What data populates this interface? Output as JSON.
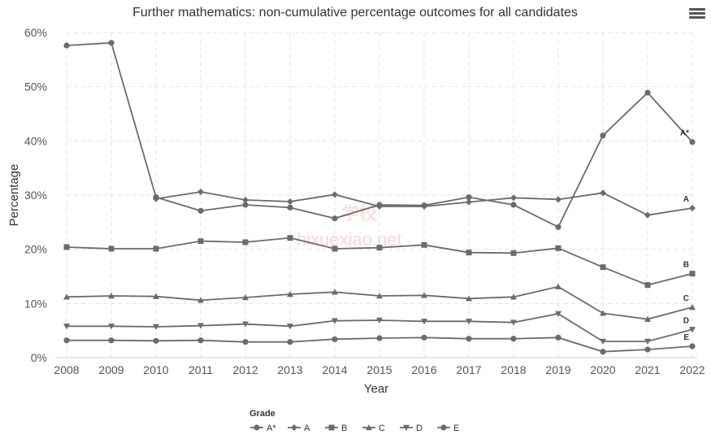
{
  "chart_data": {
    "type": "line",
    "title": "Further mathematics: non-cumulative percentage outcomes for all candidates",
    "xlabel": "Year",
    "ylabel": "Percentage",
    "x": [
      2008,
      2009,
      2010,
      2011,
      2012,
      2013,
      2014,
      2015,
      2016,
      2017,
      2018,
      2019,
      2020,
      2021,
      2022
    ],
    "ylim": [
      0,
      60
    ],
    "yticks": [
      "0%",
      "10%",
      "20%",
      "30%",
      "40%",
      "50%",
      "60%"
    ],
    "grid": true,
    "legend_title": "Grade",
    "legend_position": "bottom",
    "series": [
      {
        "name": "A*",
        "marker": "circle",
        "values": [
          57.6,
          58.1,
          29.6,
          27.1,
          28.2,
          27.7,
          25.7,
          28.2,
          28.1,
          29.6,
          28.2,
          24.1,
          41.0,
          48.9,
          39.8
        ]
      },
      {
        "name": "A",
        "marker": "diamond",
        "values": [
          null,
          null,
          29.3,
          30.6,
          29.1,
          28.8,
          30.1,
          27.9,
          27.9,
          28.7,
          29.5,
          29.2,
          30.4,
          26.3,
          27.6
        ]
      },
      {
        "name": "B",
        "marker": "square",
        "values": [
          20.4,
          20.1,
          20.1,
          21.5,
          21.3,
          22.1,
          20.1,
          20.3,
          20.8,
          19.4,
          19.3,
          20.2,
          16.7,
          13.4,
          15.5
        ]
      },
      {
        "name": "C",
        "marker": "triangle",
        "values": [
          11.2,
          11.4,
          11.3,
          10.6,
          11.1,
          11.7,
          12.1,
          11.4,
          11.5,
          10.9,
          11.2,
          13.1,
          8.2,
          7.1,
          9.3
        ]
      },
      {
        "name": "D",
        "marker": "triangle-down",
        "values": [
          5.8,
          5.8,
          5.7,
          5.9,
          6.2,
          5.8,
          6.8,
          6.9,
          6.7,
          6.7,
          6.5,
          8.1,
          3.0,
          3.0,
          5.2
        ]
      },
      {
        "name": "E",
        "marker": "circle",
        "values": [
          3.2,
          3.2,
          3.1,
          3.2,
          2.9,
          2.9,
          3.4,
          3.6,
          3.7,
          3.5,
          3.5,
          3.7,
          1.1,
          1.5,
          2.1
        ]
      }
    ],
    "colors": {
      "line": "#6b6b6b",
      "grid": "#e3e3e3",
      "axis": "#c9cbe6"
    }
  },
  "ui": {
    "menu_icon": "hamburger-menu-icon"
  },
  "watermark": {
    "logo": "学校",
    "text": "hixuexiao.net"
  }
}
